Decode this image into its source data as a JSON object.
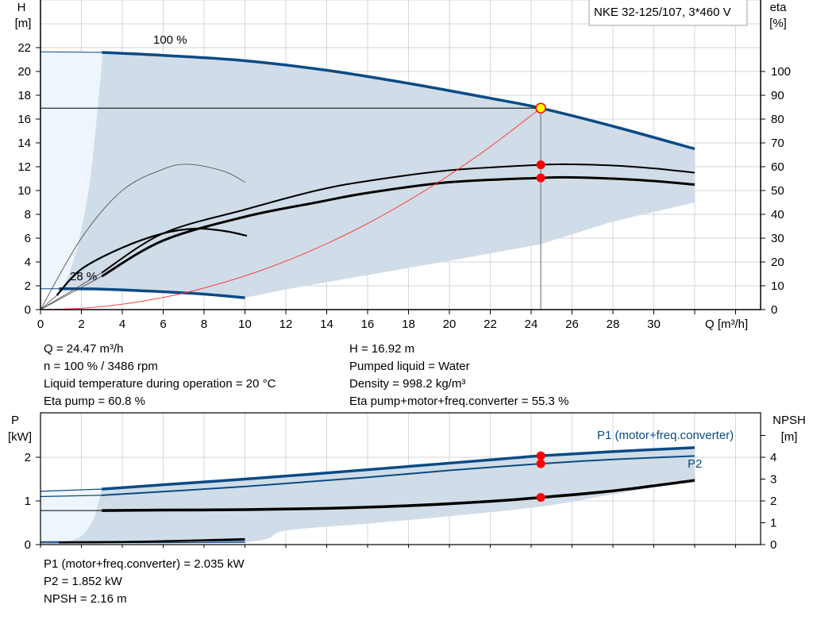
{
  "title": "NKE 32-125/107, 3*460 V",
  "colors": {
    "head": "#0b4a86",
    "region": "#d0dce7",
    "region_light": "#eef5fc",
    "system": "#ff3030",
    "point": "#ff0000",
    "op_point": "#ffff00",
    "grid": "#d6d6d6"
  },
  "info_top_left": [
    "Q = 24.47 m³/h",
    "n = 100 % / 3486 rpm",
    "Liquid temperature during operation = 20 °C",
    "Eta pump = 60.8 %"
  ],
  "info_top_right": [
    "H = 16.92 m",
    "Pumped liquid = Water",
    "Density = 998.2 kg/m³",
    "Eta pump+motor+freq.converter = 55.3 %"
  ],
  "info_bottom": [
    "P1 (motor+freq.converter) = 2.035 kW",
    "P2 = 1.852 kW",
    "NPSH = 2.16 m"
  ],
  "chart_data": [
    {
      "type": "line",
      "title": "NKE 32-125/107, 3*460 V",
      "xlabel": "Q [m³/h]",
      "ylabel_1": "H",
      "ylabel_2": "[m]",
      "y2label_1": "eta",
      "y2label_2": "[%]",
      "xlim": [
        0,
        35
      ],
      "ylim": [
        0,
        26
      ],
      "y2lim": [
        0,
        130
      ],
      "grid": true,
      "xticks": [
        "0",
        "2",
        "4",
        "6",
        "8",
        "10",
        "12",
        "14",
        "16",
        "18",
        "20",
        "22",
        "24",
        "26",
        "28",
        "30"
      ],
      "yticks": [
        "0",
        "2",
        "4",
        "6",
        "8",
        "10",
        "12",
        "14",
        "16",
        "18",
        "20",
        "22"
      ],
      "y2ticks": [
        "0",
        "10",
        "20",
        "30",
        "40",
        "50",
        "60",
        "70",
        "80",
        "90",
        "100"
      ],
      "curve_labels": [
        "100 %",
        "28 %"
      ],
      "series": [
        {
          "name": "100 %",
          "axis": "H",
          "kind": "head",
          "points": [
            [
              3,
              21.6
            ],
            [
              6,
              21.35
            ],
            [
              10,
              20.9
            ],
            [
              14,
              20.1
            ],
            [
              18,
              19.0
            ],
            [
              22,
              17.75
            ],
            [
              24.47,
              16.92
            ],
            [
              28,
              15.4
            ],
            [
              32,
              13.5
            ]
          ]
        },
        {
          "axis": "H",
          "kind": "head-ext",
          "points": [
            [
              0,
              21.65
            ],
            [
              3,
              21.6
            ]
          ]
        },
        {
          "name": "28 %",
          "axis": "H",
          "kind": "head",
          "points": [
            [
              0.9,
              1.75
            ],
            [
              3,
              1.72
            ],
            [
              6,
              1.5
            ],
            [
              8,
              1.3
            ],
            [
              10,
              1.0
            ]
          ]
        },
        {
          "axis": "H",
          "kind": "head-ext",
          "points": [
            [
              0,
              1.75
            ],
            [
              0.9,
              1.75
            ]
          ]
        },
        {
          "axis": "eta",
          "kind": "eta-thin",
          "points": [
            [
              3,
              15.5
            ],
            [
              6,
              32
            ],
            [
              10,
              42
            ],
            [
              13.5,
              50
            ],
            [
              16,
              54
            ],
            [
              20,
              58.5
            ],
            [
              24.47,
              60.8
            ],
            [
              26,
              61
            ],
            [
              28,
              60.5
            ],
            [
              30,
              59.3
            ],
            [
              32,
              57.5
            ]
          ]
        },
        {
          "axis": "eta",
          "kind": "eta-thick",
          "points": [
            [
              3,
              14
            ],
            [
              6,
              29
            ],
            [
              10,
              39
            ],
            [
              13.5,
              45
            ],
            [
              16,
              49
            ],
            [
              20,
              53.5
            ],
            [
              24.47,
              55.3
            ],
            [
              26,
              55.5
            ],
            [
              28,
              55
            ],
            [
              30,
              54
            ],
            [
              32,
              52.5
            ]
          ]
        },
        {
          "axis": "eta",
          "kind": "eta-hair",
          "points": [
            [
              0,
              0
            ],
            [
              2,
              30
            ],
            [
              4,
              50
            ],
            [
              6,
              59
            ],
            [
              7.3,
              61
            ],
            [
              9,
              58
            ],
            [
              10,
              53.5
            ]
          ]
        },
        {
          "axis": "eta",
          "kind": "eta-mid",
          "points": [
            [
              0.8,
              6
            ],
            [
              2,
              17
            ],
            [
              4,
              26
            ],
            [
              6,
              32
            ],
            [
              7.6,
              34
            ],
            [
              9,
              33
            ],
            [
              10.1,
              31
            ]
          ]
        },
        {
          "axis": "eta",
          "kind": "eta-hair",
          "points": [
            [
              0,
              0
            ],
            [
              3,
              15.5
            ]
          ]
        },
        {
          "axis": "eta",
          "kind": "eta-hair",
          "points": [
            [
              0,
              0
            ],
            [
              3,
              14
            ]
          ]
        },
        {
          "axis": "eta",
          "kind": "eta-hair",
          "points": [
            [
              0,
              0
            ],
            [
              0.8,
              6
            ]
          ]
        },
        {
          "axis": "H",
          "kind": "system",
          "points": [
            [
              0,
              0
            ],
            [
              2,
              0.113
            ],
            [
              4,
              0.452
            ],
            [
              6,
              1.017
            ],
            [
              8,
              1.81
            ],
            [
              10,
              2.826
            ],
            [
              12,
              4.07
            ],
            [
              14,
              5.54
            ],
            [
              16,
              7.23
            ],
            [
              18,
              9.16
            ],
            [
              20,
              11.3
            ],
            [
              22,
              13.68
            ],
            [
              24.47,
              16.92
            ]
          ]
        }
      ],
      "region": {
        "upper": [
          [
            3.05,
            21.6
          ],
          [
            6,
            21.35
          ],
          [
            10,
            20.9
          ],
          [
            14,
            20.1
          ],
          [
            18,
            19.0
          ],
          [
            22,
            17.75
          ],
          [
            24.47,
            16.92
          ],
          [
            28,
            15.4
          ],
          [
            32,
            13.5
          ]
        ],
        "lower": [
          [
            32,
            9
          ],
          [
            28,
            7.4
          ],
          [
            24.47,
            5.5
          ],
          [
            20,
            4.1
          ],
          [
            16,
            2.9
          ],
          [
            12,
            1.7
          ],
          [
            10,
            1.0
          ],
          [
            8,
            1.3
          ],
          [
            6,
            1.5
          ],
          [
            3,
            1.72
          ],
          [
            1.1,
            1.8
          ]
        ],
        "left": [
          [
            1.1,
            1.8
          ],
          [
            1.5,
            3.5
          ],
          [
            1.9,
            6
          ],
          [
            2.4,
            10.5
          ],
          [
            2.8,
            17
          ],
          [
            3.05,
            21.6
          ]
        ]
      },
      "operating_point": {
        "Q": 24.47,
        "H": 16.92,
        "eta_pump": 60.8,
        "eta_total": 55.3
      }
    },
    {
      "type": "line",
      "ylabel_1": "P",
      "ylabel_2": "[kW]",
      "y2label_1": "NPSH",
      "y2label_2": "[m]",
      "xlim": [
        0,
        35
      ],
      "ylim": [
        0,
        3
      ],
      "y2lim": [
        0,
        6
      ],
      "yticks": [
        "0",
        "1",
        "2"
      ],
      "y2ticks": [
        "0",
        "1",
        "2",
        "3",
        "4"
      ],
      "series": [
        {
          "name": "P1 (motor+freq.converter)",
          "axis": "P",
          "kind": "p1",
          "points": [
            [
              3,
              1.27
            ],
            [
              6,
              1.37
            ],
            [
              10,
              1.5
            ],
            [
              14,
              1.64
            ],
            [
              18,
              1.79
            ],
            [
              22,
              1.94
            ],
            [
              24.47,
              2.035
            ],
            [
              28,
              2.13
            ],
            [
              32,
              2.22
            ]
          ]
        },
        {
          "axis": "P",
          "kind": "p-ext",
          "points": [
            [
              0,
              1.22
            ],
            [
              3,
              1.27
            ]
          ]
        },
        {
          "name": "P2",
          "axis": "P",
          "kind": "p2",
          "points": [
            [
              3,
              1.13
            ],
            [
              10,
              1.33
            ],
            [
              16,
              1.54
            ],
            [
              20,
              1.7
            ],
            [
              24.47,
              1.852
            ],
            [
              28,
              1.95
            ],
            [
              32,
              2.03
            ]
          ]
        },
        {
          "axis": "P",
          "kind": "p-ext",
          "points": [
            [
              0,
              1.1
            ],
            [
              3,
              1.13
            ]
          ]
        },
        {
          "axis": "NPSH",
          "kind": "npsh",
          "points": [
            [
              3,
              1.56
            ],
            [
              6,
              1.58
            ],
            [
              10,
              1.6
            ],
            [
              14,
              1.66
            ],
            [
              18,
              1.78
            ],
            [
              22,
              1.98
            ],
            [
              24.47,
              2.16
            ],
            [
              28,
              2.46
            ],
            [
              32,
              2.94
            ]
          ]
        },
        {
          "axis": "NPSH",
          "kind": "npsh-ext",
          "points": [
            [
              0,
              1.56
            ],
            [
              3,
              1.56
            ]
          ]
        },
        {
          "axis": "P",
          "kind": "p-ext",
          "points": [
            [
              0,
              0.065
            ],
            [
              10,
              0.085
            ]
          ]
        },
        {
          "axis": "P",
          "kind": "p-ext",
          "points": [
            [
              0,
              0.04
            ],
            [
              10,
              0.05
            ]
          ]
        },
        {
          "axis": "NPSH",
          "kind": "npsh-low",
          "points": [
            [
              0.9,
              0.1
            ],
            [
              5,
              0.13
            ],
            [
              10,
              0.25
            ]
          ]
        }
      ],
      "region": {
        "upper": [
          [
            3,
            1.27
          ],
          [
            6,
            1.37
          ],
          [
            10,
            1.5
          ],
          [
            14,
            1.64
          ],
          [
            18,
            1.79
          ],
          [
            22,
            1.94
          ],
          [
            24.47,
            2.035
          ],
          [
            28,
            2.13
          ],
          [
            32,
            2.22
          ]
        ],
        "lower": [
          [
            32,
            1.47
          ],
          [
            28,
            1.15
          ],
          [
            24.47,
            0.87
          ],
          [
            20,
            0.65
          ],
          [
            16,
            0.48
          ],
          [
            12,
            0.32
          ],
          [
            10,
            0.06
          ],
          [
            1,
            0.02
          ]
        ],
        "left": [
          [
            1,
            0.02
          ],
          [
            2,
            0.2
          ],
          [
            2.6,
            0.6
          ],
          [
            3,
            1.27
          ]
        ]
      },
      "operating_point": {
        "Q": 24.47,
        "P1": 2.035,
        "P2": 1.852,
        "NPSH": 2.16
      }
    }
  ]
}
